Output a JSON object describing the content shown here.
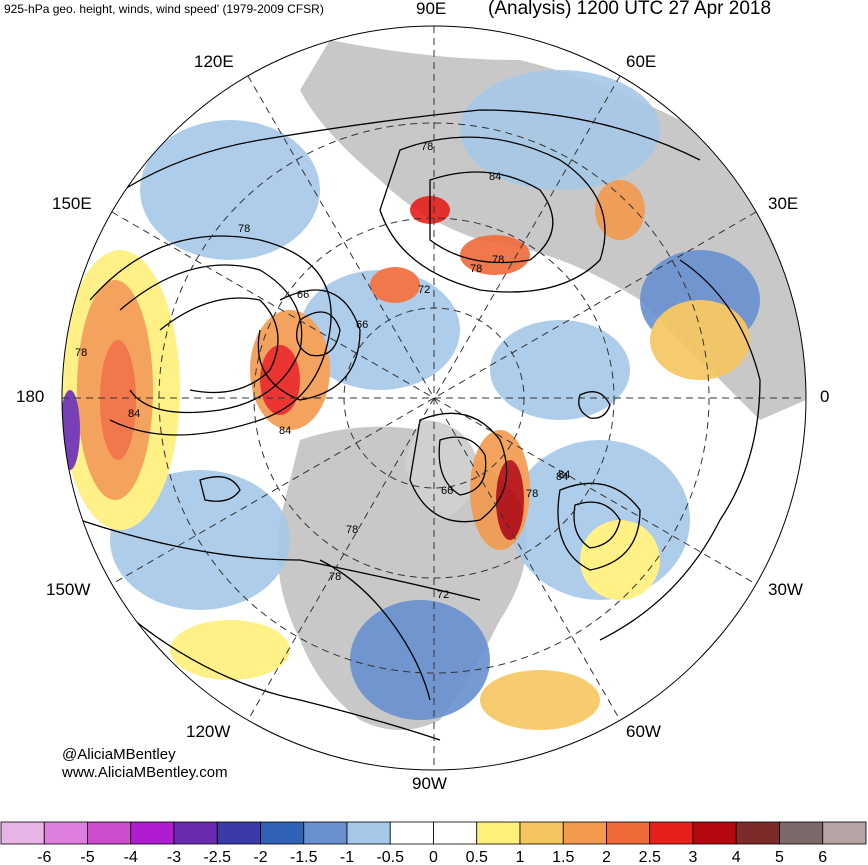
{
  "header": {
    "left_title": "925-hPa geo. height, winds, wind speed' (1979-2009 CFSR)",
    "right_title": "(Analysis) 1200 UTC 27 Apr 2018"
  },
  "map": {
    "projection": "north-polar-stereographic",
    "longitude_labels": {
      "top": "90E",
      "top_right": "60E",
      "right_upper": "30E",
      "right": "0",
      "right_lower": "30W",
      "bottom_right": "60W",
      "bottom": "90W",
      "bottom_left": "120W",
      "left_lower": "150W",
      "left": "180",
      "left_upper": "150E",
      "top_left": "120E"
    },
    "contour_labels": [
      "78",
      "84",
      "78",
      "78",
      "72",
      "66",
      "66",
      "84",
      "78",
      "84",
      "78",
      "84",
      "78",
      "66",
      "78",
      "72",
      "78",
      "84"
    ],
    "land_color": "#c8c8c8",
    "coast_color": "#404040"
  },
  "credits": {
    "twitter": "@AliciaMBentley",
    "website": "www.AliciaMBentley.com"
  },
  "colorbar": {
    "colors": [
      "#e8b4e6",
      "#e07ee0",
      "#cd4ccd",
      "#b01cd0",
      "#6a2bb0",
      "#3a3aa8",
      "#3062b8",
      "#6890d0",
      "#a6c8e8",
      "#ffffff",
      "#ffffff",
      "#fff07a",
      "#f6c65e",
      "#f39a4e",
      "#f06a38",
      "#e8201c",
      "#b4080e",
      "#7c2a2a",
      "#7a6a6a",
      "#b4a4a4"
    ],
    "tick_labels": [
      "-6",
      "-5",
      "-4",
      "-3",
      "-2.5",
      "-2",
      "-1.5",
      "-1",
      "-0.5",
      "0",
      "0.5",
      "1",
      "1.5",
      "2",
      "2.5",
      "3",
      "4",
      "5",
      "6"
    ]
  }
}
